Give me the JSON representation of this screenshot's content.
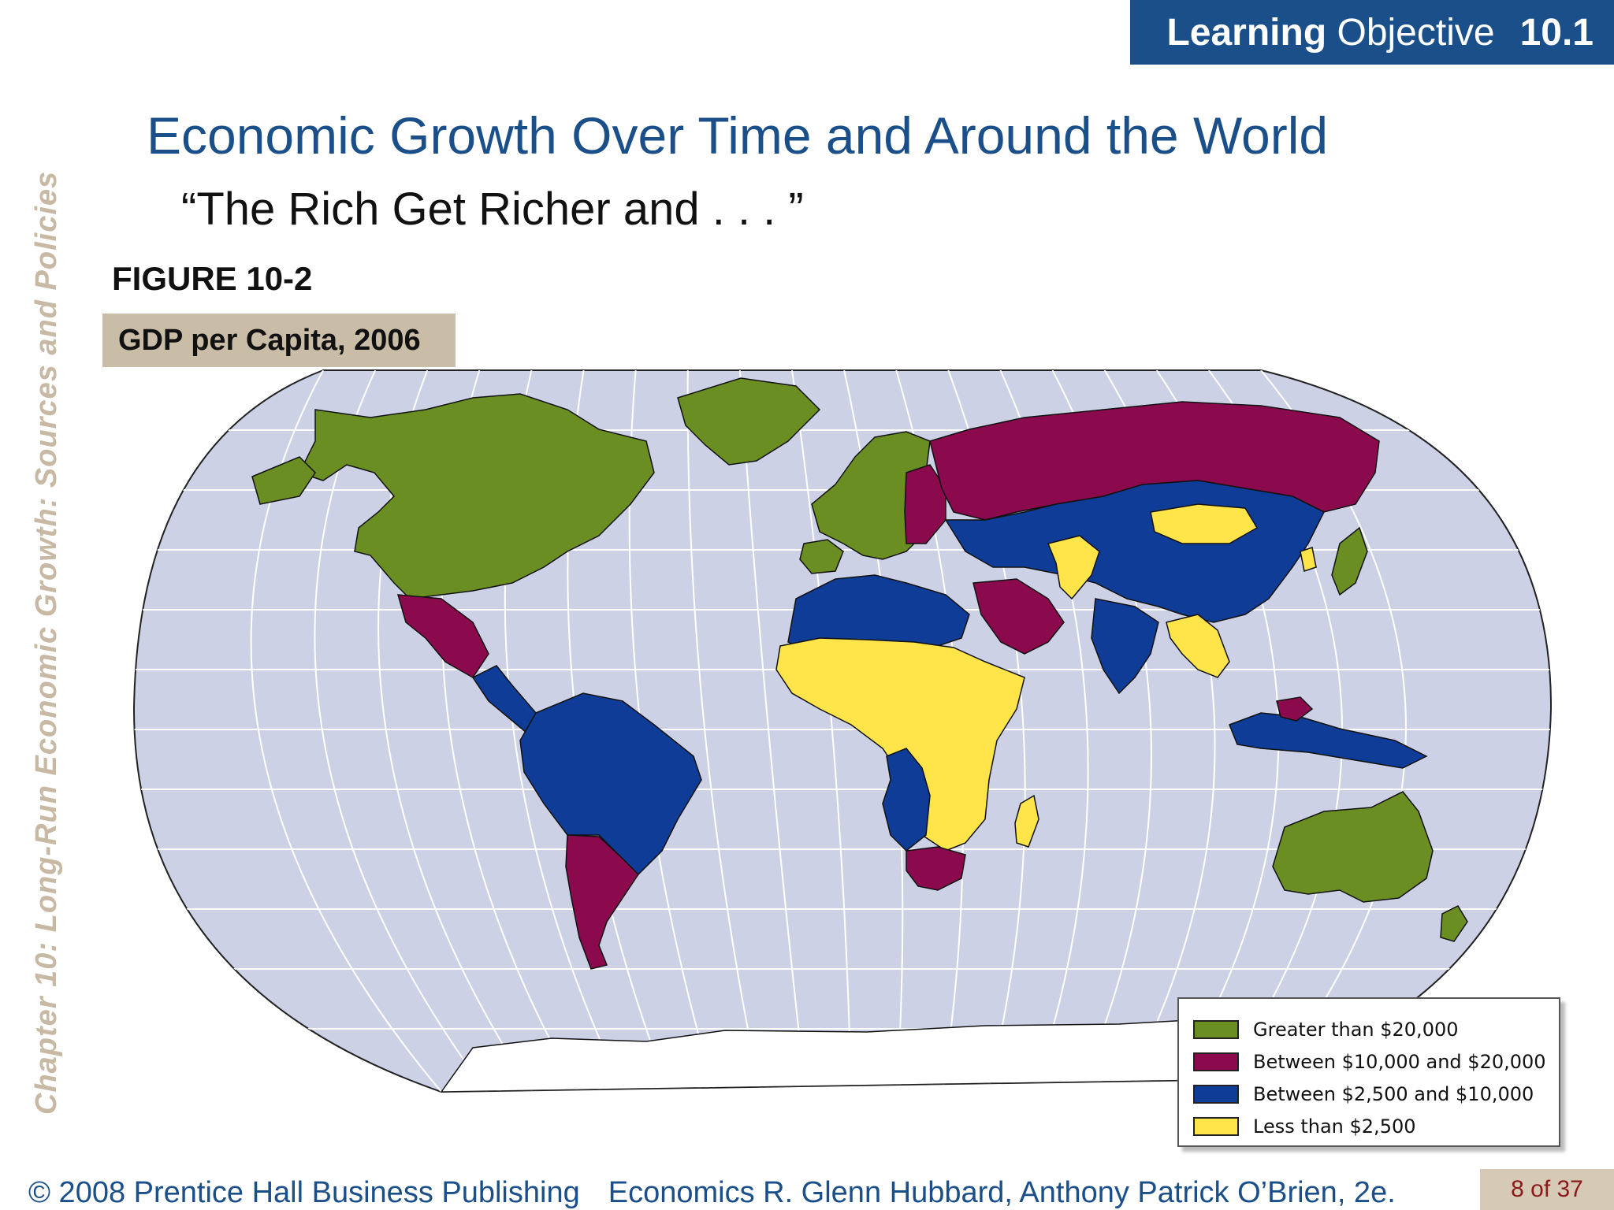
{
  "badge": {
    "bold": "Learning",
    "regular": "Objective",
    "number": "10.1"
  },
  "sidebar_text": "Chapter 10:  Long-Run Economic Growth:  Sources and Policies",
  "title": "Economic Growth Over Time and Around the World",
  "subtitle": "“The Rich Get Richer and . . . ”",
  "figure": {
    "number": "FIGURE 10-2",
    "caption": "GDP per Capita, 2006"
  },
  "map": {
    "ocean_color": "#cdd1e6",
    "grid_color": "#ffffff",
    "categories": [
      {
        "label": "Greater than $20,000",
        "color": "#6b8e23"
      },
      {
        "label": "Between $10,000 and $20,000",
        "color": "#8b0a4e"
      },
      {
        "label": "Between $2,500 and $10,000",
        "color": "#0f3c97"
      },
      {
        "label": "Less than $2,500",
        "color": "#ffe44a"
      }
    ]
  },
  "footer": {
    "copyright": "© 2008 Prentice Hall Business Publishing",
    "book": "Economics  R. Glenn Hubbard, Anthony Patrick O’Brien, 2e."
  },
  "page": "8 of 37"
}
